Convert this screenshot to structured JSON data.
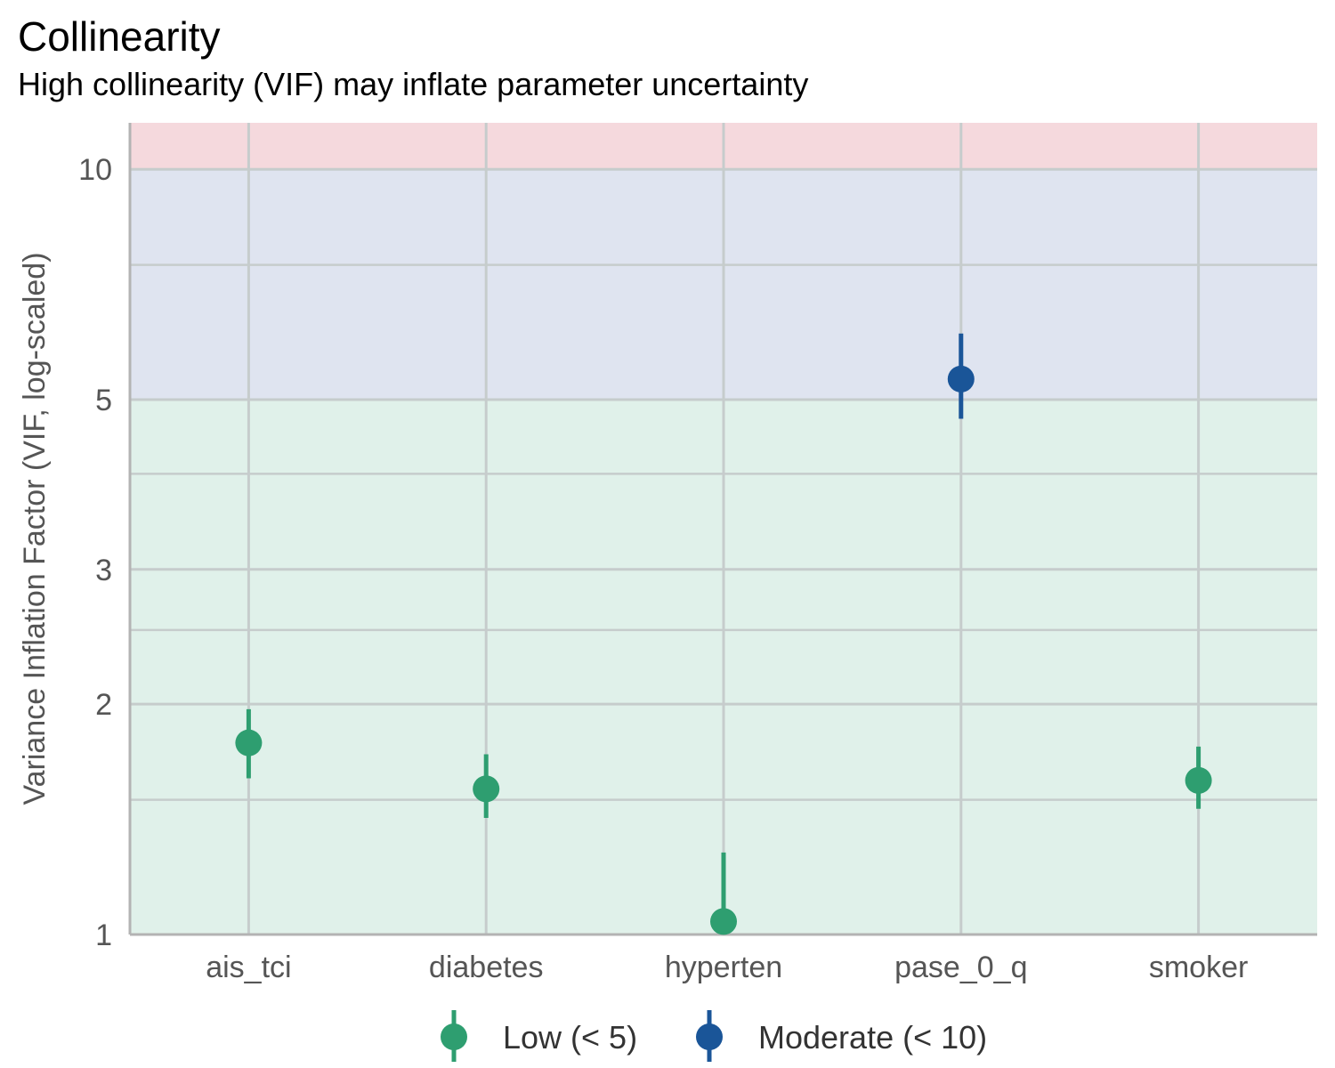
{
  "chart_data": {
    "type": "scatter",
    "title": "Collinearity",
    "subtitle": "High collinearity (VIF) may inflate parameter uncertainty",
    "ylabel": "Variance Inflation Factor (VIF, log-scaled)",
    "xlabel": "",
    "y_scale": "log",
    "ylim": [
      1,
      11.5
    ],
    "y_ticks": [
      1,
      2,
      3,
      5,
      10
    ],
    "y_tick_labels": [
      "1",
      "2",
      "3",
      "5",
      "10"
    ],
    "y_minor_gridlines": [
      1.5,
      2.5,
      4,
      7.5
    ],
    "grid": true,
    "categories": [
      "ais_tci",
      "diabetes",
      "hyperten",
      "pase_0_q",
      "smoker"
    ],
    "bands": [
      {
        "from": 1,
        "to": 5,
        "color": "#e0f1ea"
      },
      {
        "from": 5,
        "to": 10,
        "color": "#dfe4f0"
      },
      {
        "from": 10,
        "to": 11.5,
        "color": "#f5d9dd"
      }
    ],
    "points": [
      {
        "category": "ais_tci",
        "vif": 1.78,
        "ci_low": 1.6,
        "ci_high": 1.97,
        "group": "Low (< 5)"
      },
      {
        "category": "diabetes",
        "vif": 1.55,
        "ci_low": 1.42,
        "ci_high": 1.72,
        "group": "Low (< 5)"
      },
      {
        "category": "hyperten",
        "vif": 1.04,
        "ci_low": 1.0,
        "ci_high": 1.28,
        "group": "Low (< 5)"
      },
      {
        "category": "pase_0_q",
        "vif": 5.32,
        "ci_low": 4.72,
        "ci_high": 6.1,
        "group": "Moderate (< 10)"
      },
      {
        "category": "smoker",
        "vif": 1.59,
        "ci_low": 1.46,
        "ci_high": 1.76,
        "group": "Low (< 5)"
      }
    ],
    "legend": {
      "position": "bottom",
      "entries": [
        {
          "label": "Low (< 5)",
          "color": "#2e9e70"
        },
        {
          "label": "Moderate (< 10)",
          "color": "#1a5598"
        }
      ]
    }
  }
}
